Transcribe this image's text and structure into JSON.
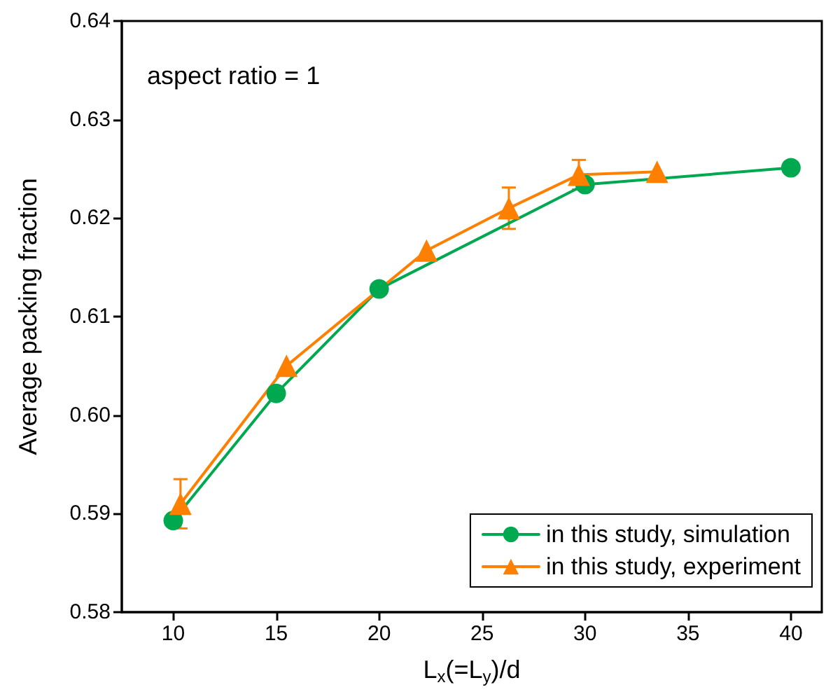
{
  "chart_data": {
    "type": "line",
    "xlabel": "L$_{x}$(=L$_{y}$)/d",
    "ylabel": "Average packing fraction",
    "annotations": [
      "aspect ratio = 1"
    ],
    "xlim": [
      7.5,
      41.5
    ],
    "xticks": [
      10,
      15,
      20,
      25,
      30,
      35,
      40
    ],
    "ylim": [
      0.58,
      0.64
    ],
    "yticks": [
      0.58,
      0.59,
      {
        "value": 0.6,
        "label": "0.60"
      },
      0.61,
      0.62,
      0.63,
      0.64
    ],
    "grid": false,
    "legend": "bottom right",
    "line_style": "solid",
    "series": [
      {
        "name": "in this study, simulation",
        "color": "#00a94f",
        "marker": "circle",
        "x": [
          10,
          15,
          20,
          30,
          40
        ],
        "values": [
          0.5893,
          0.6022,
          0.6128,
          0.6234,
          0.6251
        ]
      },
      {
        "name": "in this study, experiment",
        "color": "#ff8000",
        "marker": "triangle",
        "x": [
          10.35,
          15.5,
          22.3,
          26.3,
          29.7,
          33.5
        ],
        "values": [
          0.591,
          0.605,
          0.6167,
          0.621,
          0.6244,
          0.6247
        ],
        "errors": [
          0.0025,
          null,
          null,
          0.0021,
          0.0015,
          null
        ]
      }
    ]
  }
}
